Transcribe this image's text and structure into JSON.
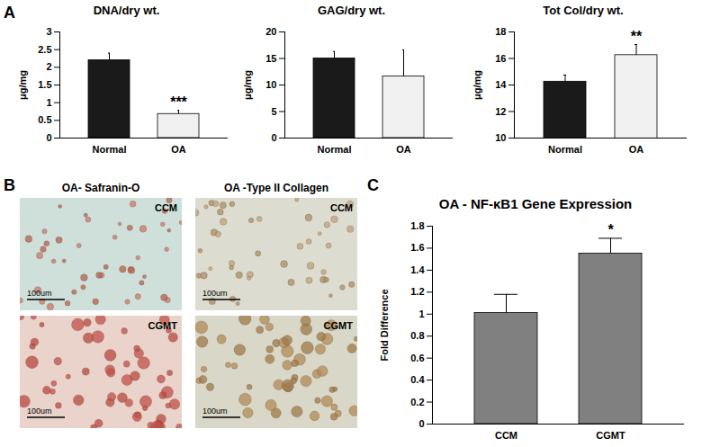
{
  "chart_data": [
    {
      "type": "bar",
      "title": "DNA/dry wt.",
      "y_label": "μg/mg",
      "categories": [
        "Normal",
        "OA"
      ],
      "values": [
        2.2,
        0.68
      ],
      "errors": [
        0.2,
        0.1
      ],
      "colors": [
        "#1a1a1a",
        "#f0f0f0"
      ],
      "ylim": [
        0,
        3
      ],
      "yticks": [
        0,
        0.5,
        1,
        1.5,
        2,
        2.5,
        3
      ],
      "annotations": [
        {
          "x": "OA",
          "text": "***"
        }
      ]
    },
    {
      "type": "bar",
      "title": "GAG/dry wt.",
      "y_label": "μg/mg",
      "categories": [
        "Normal",
        "OA"
      ],
      "values": [
        15,
        11.6
      ],
      "errors": [
        1.3,
        5
      ],
      "colors": [
        "#1a1a1a",
        "#f0f0f0"
      ],
      "ylim": [
        0,
        20
      ],
      "yticks": [
        0,
        5,
        10,
        15,
        20
      ]
    },
    {
      "type": "bar",
      "title": "Tot Col/dry wt.",
      "y_label": "μg/mg",
      "categories": [
        "Normal",
        "OA"
      ],
      "values": [
        14.25,
        16.25
      ],
      "errors": [
        0.5,
        0.8
      ],
      "colors": [
        "#1a1a1a",
        "#f0f0f0"
      ],
      "ylim": [
        10,
        18
      ],
      "yticks": [
        10,
        12,
        14,
        16,
        18
      ],
      "annotations": [
        {
          "x": "OA",
          "text": "**"
        }
      ]
    },
    {
      "type": "bar",
      "title": "OA - NF-κB1 Gene Expression",
      "y_label": "Fold Difference",
      "categories": [
        "CCM",
        "CGMT"
      ],
      "values": [
        1.01,
        1.55
      ],
      "errors": [
        0.17,
        0.14
      ],
      "color": "#808080",
      "ylim": [
        0,
        1.8
      ],
      "yticks": [
        0,
        0.2,
        0.4,
        0.6,
        0.8,
        1,
        1.2,
        1.4,
        1.6,
        1.8
      ],
      "annotations": [
        {
          "x": "CGMT",
          "text": "*"
        }
      ]
    }
  ],
  "panels": {
    "labels": [
      "A",
      "B",
      "C"
    ],
    "micrographs": [
      {
        "title": "OA- Safranin-O",
        "images": [
          {
            "label": "CCM",
            "scale_bar": "100um"
          },
          {
            "label": "CGMT",
            "scale_bar": "100um"
          }
        ]
      },
      {
        "title": "OA -Type II Collagen",
        "images": [
          {
            "label": "CCM",
            "scale_bar": "100um"
          },
          {
            "label": "CGMT",
            "scale_bar": "100um"
          }
        ]
      }
    ]
  }
}
